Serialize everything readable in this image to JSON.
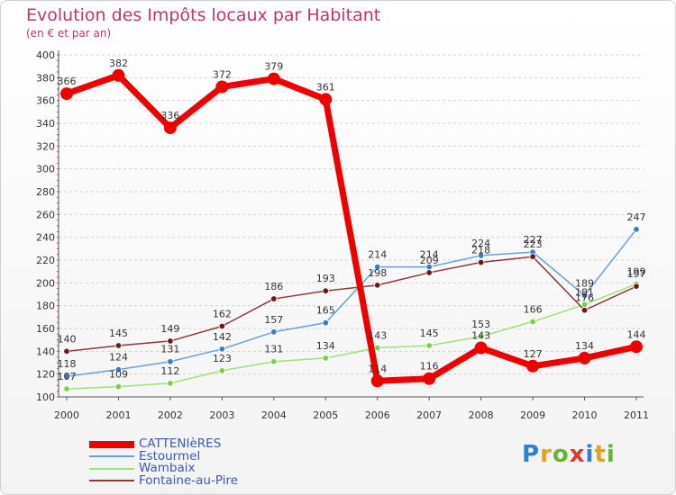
{
  "header": {
    "title": "Evolution des Impôts locaux par Habitant",
    "subtitle": "(en € et par an)"
  },
  "logo": {
    "letters": [
      "P",
      "r",
      "o",
      "x",
      "i",
      "t",
      "i"
    ],
    "colors": [
      "#2f7fd1",
      "#e8a019",
      "#69b52f",
      "#d93a2a",
      "#2f7fd1",
      "#e8a019",
      "#69b52f"
    ]
  },
  "colors": {
    "title": "#c0356b",
    "legend_text": "#3a5ab0"
  },
  "chart_data": {
    "type": "line",
    "title": "Evolution des Impôts locaux par Habitant",
    "subtitle": "(en € et par an)",
    "xlabel": "",
    "ylabel": "",
    "categories": [
      "2000",
      "2001",
      "2002",
      "2003",
      "2004",
      "2005",
      "2006",
      "2007",
      "2008",
      "2009",
      "2010",
      "2011"
    ],
    "ylim": [
      100,
      400
    ],
    "yticks": [
      100,
      120,
      140,
      160,
      180,
      200,
      220,
      240,
      260,
      280,
      300,
      320,
      340,
      360,
      380,
      400
    ],
    "grid": "horizontal dashed",
    "legend_position": "bottom-left",
    "series": [
      {
        "name": "CATTENIèRES",
        "color": "#ee0000",
        "marker": "#ee0000",
        "emphasis": true,
        "values": [
          366,
          382,
          336,
          372,
          379,
          361,
          114,
          116,
          143,
          127,
          134,
          144
        ],
        "labels": [
          "366",
          "382",
          "336",
          "372",
          "379",
          "361",
          "114",
          "116",
          "143",
          "127",
          "134",
          "144"
        ]
      },
      {
        "name": "Estourmel",
        "color": "#6aa0d4",
        "marker": "#3a7ec2",
        "emphasis": false,
        "values": [
          118,
          124,
          131,
          142,
          157,
          165,
          214,
          214,
          224,
          227,
          189,
          247
        ],
        "labels": [
          "118",
          "124",
          "131",
          "142",
          "157",
          "165",
          "214",
          "214",
          "224",
          "227",
          "189",
          "247"
        ]
      },
      {
        "name": "Wambaix",
        "color": "#9ee07a",
        "marker": "#7ccf45",
        "emphasis": false,
        "values": [
          107,
          109,
          112,
          123,
          131,
          134,
          143,
          145,
          153,
          166,
          181,
          199
        ],
        "labels": [
          "107",
          "109",
          "112",
          "123",
          "131",
          "134",
          "143",
          "145",
          "153",
          "166",
          "181",
          "199"
        ]
      },
      {
        "name": "Fontaine-au-Pire",
        "color": "#8b3a3a",
        "marker": "#6b1a1a",
        "emphasis": false,
        "values": [
          140,
          145,
          149,
          162,
          186,
          193,
          198,
          209,
          218,
          223,
          176,
          197
        ],
        "labels": [
          "140",
          "145",
          "149",
          "162",
          "186",
          "193",
          "198",
          "209",
          "218",
          "223",
          "176",
          "197"
        ]
      }
    ]
  }
}
